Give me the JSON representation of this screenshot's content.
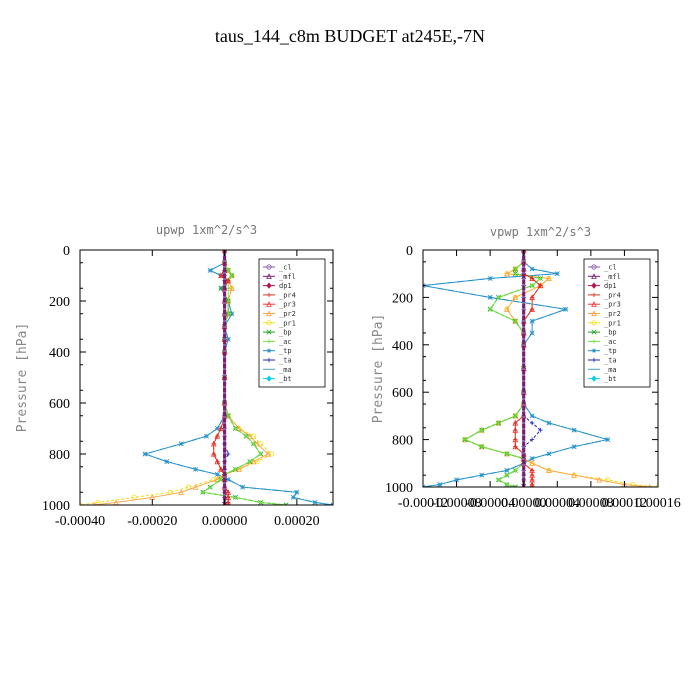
{
  "figure_title": "taus_144_c8m  BUDGET at245E,-7N",
  "colors": {
    "cl": "#8a5aa8",
    "mfl": "#7a1d6e",
    "dp1": "#c01050",
    "pr4": "#d83020",
    "pr3": "#ff3030",
    "pr2": "#ffa040",
    "pr1": "#f0e020",
    "bp": "#20a020",
    "ac": "#70e040",
    "tp": "#2090d0",
    "ta": "#2020c0",
    "ma": "#4aa0b8",
    "bt": "#00d0f0"
  },
  "chart_data": [
    {
      "type": "line",
      "title": "upwp   1xm^2/s^3",
      "xlabel": "",
      "ylabel": "Pressure [hPa]",
      "xlim": [
        -0.0004,
        0.0003
      ],
      "ylim": [
        1000,
        0
      ],
      "xticks": [
        -0.0004,
        -0.0002,
        0.0,
        0.0002
      ],
      "xtick_labels": [
        "-0.00040",
        "-0.00020",
        "0.00000",
        "0.00020"
      ],
      "yticks": [
        0,
        200,
        400,
        600,
        800,
        1000
      ],
      "ytick_labels": [
        "0",
        "200",
        "400",
        "600",
        "800",
        "1000"
      ],
      "legend": [
        "_cl",
        "_mfl",
        "dp1",
        "_pr4",
        "_pr3",
        "_pr2",
        "_pr1",
        "_bp",
        "_ac",
        "_tp",
        "_ta",
        "_ma",
        "_bt"
      ],
      "legend_placement": "top-right",
      "y": [
        0,
        50,
        80,
        100,
        120,
        150,
        200,
        250,
        300,
        350,
        400,
        500,
        600,
        650,
        700,
        730,
        760,
        800,
        830,
        860,
        880,
        900,
        930,
        950,
        970,
        990,
        1000
      ],
      "series": [
        {
          "name": "_ma",
          "values": [
            0,
            0,
            -4e-05,
            -1e-05,
            1e-05,
            -1e-05,
            1e-05,
            2e-05,
            0.0,
            1e-05,
            0,
            0,
            0,
            0,
            -2e-05,
            -5e-05,
            -0.00012,
            -0.00022,
            -0.00016,
            -8e-05,
            -2e-05,
            1e-05,
            5e-05,
            0.0002,
            0.00019,
            0.00025,
            0.0003
          ]
        },
        {
          "name": "_tp",
          "values": [
            0,
            0,
            -4e-05,
            -1e-05,
            1e-05,
            -1e-05,
            1e-05,
            2e-05,
            0.0,
            1e-05,
            0,
            0,
            0,
            0,
            -2e-05,
            -5e-05,
            -0.00012,
            -0.00022,
            -0.00016,
            -8e-05,
            -2e-05,
            1e-05,
            5e-05,
            0.0002,
            0.00019,
            0.00025,
            0.0003
          ]
        },
        {
          "name": "_pr1",
          "values": [
            0,
            0,
            1e-05,
            2e-05,
            1e-05,
            2e-05,
            1e-05,
            1e-05,
            0.0,
            0.0,
            0,
            0,
            0,
            1e-05,
            4e-05,
            8e-05,
            0.0001,
            0.00013,
            9e-05,
            4e-05,
            0.0,
            -3e-05,
            -0.0001,
            -0.00015,
            -0.00025,
            -0.00035,
            -0.0004
          ]
        },
        {
          "name": "_pr2",
          "values": [
            0,
            0,
            1e-05,
            2e-05,
            1e-05,
            2e-05,
            1e-05,
            1e-05,
            0.0,
            0.0,
            0,
            0,
            0,
            1e-05,
            4e-05,
            7e-05,
            9e-05,
            0.00012,
            8e-05,
            4e-05,
            0.0,
            -2e-05,
            -8e-05,
            -0.00012,
            -0.0002,
            -0.0003,
            -0.00036
          ]
        },
        {
          "name": "_bp",
          "values": [
            0,
            0,
            1e-05,
            2e-05,
            1e-05,
            -1e-05,
            1e-05,
            1e-05,
            0.0,
            0.0,
            0,
            0,
            0,
            1e-05,
            3e-05,
            6e-05,
            8e-05,
            0.0001,
            7e-05,
            3e-05,
            0.0,
            -1e-05,
            -4e-05,
            -6e-05,
            3e-05,
            0.0001,
            0.00017
          ]
        },
        {
          "name": "_ac",
          "values": [
            0,
            0,
            1e-05,
            2e-05,
            1e-05,
            1e-05,
            1e-05,
            1e-05,
            0.0,
            0.0,
            0,
            0,
            0,
            1e-05,
            3e-05,
            6e-05,
            8e-05,
            0.0001,
            7e-05,
            3e-05,
            0.0,
            -1e-05,
            -4e-05,
            -6e-05,
            3e-05,
            0.0001,
            0.00017
          ]
        },
        {
          "name": "_pr3",
          "values": [
            0,
            0,
            0.0,
            -1e-05,
            1e-05,
            0.0,
            0.0,
            0.0,
            0.0,
            0.0,
            0,
            0,
            0,
            0,
            -1e-05,
            -2e-05,
            -3e-05,
            -3e-05,
            -2e-05,
            -1e-05,
            0.0,
            0.0,
            0.0,
            1e-05,
            1e-05,
            1e-05,
            1e-05
          ]
        },
        {
          "name": "_pr4",
          "values": [
            0,
            0,
            0.0,
            -1e-05,
            1e-05,
            0.0,
            0.0,
            0.0,
            0.0,
            0.0,
            0,
            0,
            0,
            0,
            -1e-05,
            -2e-05,
            -3e-05,
            -3e-05,
            -2e-05,
            -1e-05,
            0.0,
            0.0,
            0.0,
            1e-05,
            1e-05,
            1e-05,
            1e-05
          ]
        },
        {
          "name": "_ta",
          "values": [
            0,
            0,
            0,
            0,
            0,
            0,
            0,
            0,
            0,
            0,
            0,
            0,
            0,
            0,
            0,
            0,
            0,
            1e-05,
            0,
            0,
            0,
            0,
            0,
            0,
            0,
            0,
            0
          ]
        },
        {
          "name": "_cl",
          "values": [
            0,
            0,
            0,
            0,
            0,
            0,
            0,
            0,
            0,
            0,
            0,
            0,
            0,
            0,
            0,
            0,
            0,
            0,
            0,
            0,
            0,
            0,
            0,
            0,
            0,
            0,
            0
          ]
        },
        {
          "name": "_mfl",
          "values": [
            0,
            0,
            0,
            0,
            0,
            0,
            0,
            0,
            0,
            0,
            0,
            0,
            0,
            0,
            0,
            0,
            0,
            0,
            0,
            0,
            0,
            0,
            0,
            0,
            0,
            0,
            0
          ]
        }
      ]
    },
    {
      "type": "line",
      "title": "vpwp   1xm^2/s^3",
      "xlabel": "",
      "ylabel": "Pressure [hPa]",
      "xlim": [
        -0.00012,
        0.00016
      ],
      "ylim": [
        1000,
        0
      ],
      "xticks": [
        -0.00012,
        -8e-05,
        -4e-05,
        0.0,
        4e-05,
        8e-05,
        0.00012,
        0.00016
      ],
      "xtick_labels": [
        "-0.00012",
        "-0.00008",
        "-0.00004",
        "0.00000",
        "0.00004",
        "0.00008",
        "0.00012",
        "0.00016"
      ],
      "yticks": [
        0,
        200,
        400,
        600,
        800,
        1000
      ],
      "ytick_labels": [
        "0",
        "200",
        "400",
        "600",
        "800",
        "1000"
      ],
      "legend": [
        "_cl",
        "_mfl",
        "dp1",
        "_pr4",
        "_pr3",
        "_pr2",
        "_pr1",
        "_bp",
        "_ac",
        "_tp",
        "_ta",
        "_ma",
        "_bt"
      ],
      "legend_placement": "top-right",
      "y": [
        0,
        50,
        80,
        100,
        120,
        150,
        200,
        250,
        300,
        350,
        400,
        500,
        600,
        650,
        700,
        730,
        760,
        800,
        830,
        860,
        880,
        900,
        930,
        950,
        970,
        990,
        1000
      ],
      "series": [
        {
          "name": "_ma",
          "values": [
            0,
            0,
            1e-05,
            4e-05,
            -4e-05,
            -0.00012,
            -4e-05,
            5e-05,
            1e-05,
            1e-05,
            0,
            0,
            0,
            0,
            1e-05,
            3e-05,
            6e-05,
            0.0001,
            6e-05,
            3e-05,
            1e-05,
            0.0,
            -2e-05,
            -5e-05,
            -8e-05,
            -0.0001,
            -0.00012
          ]
        },
        {
          "name": "_tp",
          "values": [
            0,
            0,
            1e-05,
            4e-05,
            -4e-05,
            -0.00012,
            -4e-05,
            5e-05,
            1e-05,
            1e-05,
            0,
            0,
            0,
            0,
            1e-05,
            3e-05,
            6e-05,
            0.0001,
            6e-05,
            3e-05,
            1e-05,
            0.0,
            -2e-05,
            -5e-05,
            -8e-05,
            -0.0001,
            -0.00012
          ]
        },
        {
          "name": "_pr1",
          "values": [
            0,
            0,
            -1e-05,
            -2e-05,
            3e-05,
            2e-05,
            -1e-05,
            -2e-05,
            -1e-05,
            0.0,
            0,
            0,
            0,
            0,
            -1e-05,
            -3e-05,
            -5e-05,
            -7e-05,
            -5e-05,
            -2e-05,
            0.0,
            1e-05,
            3e-05,
            6e-05,
            0.0001,
            0.00013,
            0.00016
          ]
        },
        {
          "name": "_pr2",
          "values": [
            0,
            0,
            -1e-05,
            -2e-05,
            3e-05,
            2e-05,
            -1e-05,
            -2e-05,
            -1e-05,
            0.0,
            0,
            0,
            0,
            0,
            -1e-05,
            -3e-05,
            -5e-05,
            -7e-05,
            -5e-05,
            -2e-05,
            0.0,
            1e-05,
            3e-05,
            6e-05,
            9e-05,
            0.00012,
            0.00015
          ]
        },
        {
          "name": "_bp",
          "values": [
            0,
            0,
            -1e-05,
            -1e-05,
            2e-05,
            1e-05,
            -3e-05,
            -4e-05,
            -1e-05,
            0.0,
            0,
            0,
            0,
            0,
            -1e-05,
            -3e-05,
            -5e-05,
            -7e-05,
            -5e-05,
            -2e-05,
            0.0,
            0.0,
            -1e-05,
            -2e-05,
            -3e-05,
            -2e-05,
            -1e-05
          ]
        },
        {
          "name": "_ac",
          "values": [
            0,
            0,
            -1e-05,
            -1e-05,
            2e-05,
            1e-05,
            -3e-05,
            -4e-05,
            -1e-05,
            0.0,
            0,
            0,
            0,
            0,
            -1e-05,
            -3e-05,
            -5e-05,
            -7e-05,
            -5e-05,
            -2e-05,
            0.0,
            0.0,
            -1e-05,
            -2e-05,
            -3e-05,
            -2e-05,
            -1e-05
          ]
        },
        {
          "name": "_pr3",
          "values": [
            0,
            0,
            0.0,
            0.0,
            1e-05,
            2e-05,
            1e-05,
            1e-05,
            0.0,
            0.0,
            0,
            0,
            0,
            0,
            0.0,
            -1e-05,
            -1e-05,
            -1e-05,
            -1e-05,
            0.0,
            0.0,
            0.0,
            1e-05,
            1e-05,
            1e-05,
            1e-05,
            1e-05
          ]
        },
        {
          "name": "_pr4",
          "values": [
            0,
            0,
            0.0,
            0.0,
            1e-05,
            2e-05,
            1e-05,
            1e-05,
            0.0,
            0.0,
            0,
            0,
            0,
            0,
            0.0,
            -1e-05,
            -1e-05,
            -1e-05,
            -1e-05,
            0.0,
            0.0,
            0.0,
            1e-05,
            1e-05,
            1e-05,
            1e-05,
            1e-05
          ]
        },
        {
          "name": "_ta",
          "values": [
            0,
            0,
            0,
            0,
            0,
            0,
            0,
            0,
            0,
            0,
            0,
            0,
            0,
            0,
            0,
            1e-05,
            2e-05,
            1e-05,
            0,
            0,
            0,
            0,
            0,
            0,
            0,
            0,
            0
          ]
        },
        {
          "name": "_cl",
          "values": [
            0,
            0,
            0,
            0,
            0,
            0,
            0,
            0,
            0,
            0,
            0,
            0,
            0,
            0,
            0,
            0,
            0,
            0,
            0,
            0,
            0,
            0,
            0,
            0,
            0,
            0,
            0
          ]
        },
        {
          "name": "_mfl",
          "values": [
            0,
            0,
            0,
            0,
            0,
            0,
            0,
            0,
            0,
            0,
            0,
            0,
            0,
            0,
            0,
            0,
            0,
            0,
            0,
            0,
            0,
            0,
            0,
            0,
            0,
            0,
            0
          ]
        }
      ]
    }
  ]
}
